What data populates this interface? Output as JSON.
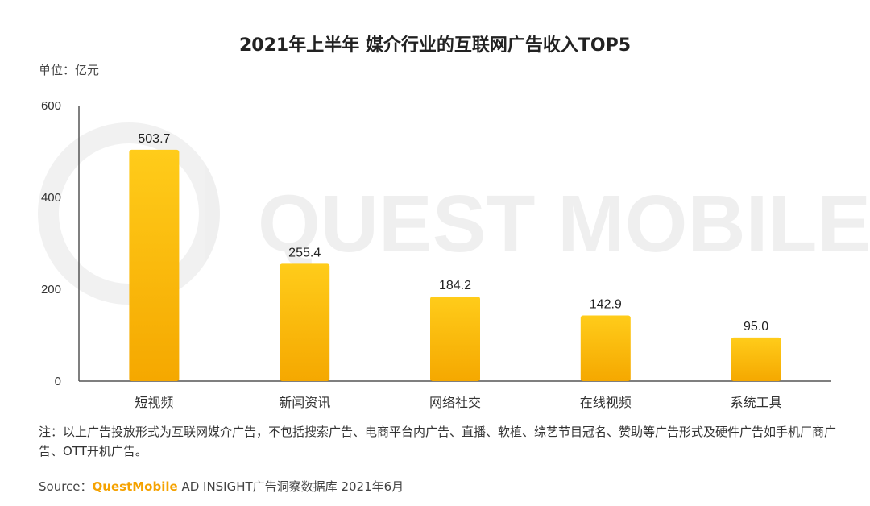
{
  "chart_data": {
    "type": "bar",
    "title": "2021年上半年 媒介行业的互联网广告收入TOP5",
    "unit_label": "单位：亿元",
    "categories": [
      "短视频",
      "新闻资讯",
      "网络社交",
      "在线视频",
      "系统工具"
    ],
    "values": [
      503.7,
      255.4,
      184.2,
      142.9,
      95.0
    ],
    "value_labels": [
      "503.7",
      "255.4",
      "184.2",
      "142.9",
      "95.0"
    ],
    "ylim": [
      0,
      600
    ],
    "yticks": [
      0,
      200,
      400,
      600
    ],
    "xlabel": "",
    "ylabel": "",
    "grid": false,
    "bar_color_top": "#ffcc1a",
    "bar_color_bottom": "#f5a800",
    "axis_color": "#555555"
  },
  "watermark": "QUEST MOBILE",
  "note": "注：以上广告投放形式为互联网媒介广告，不包括搜索广告、电商平台内广告、直播、软植、综艺节目冠名、赞助等广告形式及硬件广告如手机厂商广告、OTT开机广告。",
  "source": {
    "prefix": "Source：",
    "brand": "QuestMobile",
    "suffix": " AD INSIGHT广告洞察数据库 2021年6月"
  }
}
